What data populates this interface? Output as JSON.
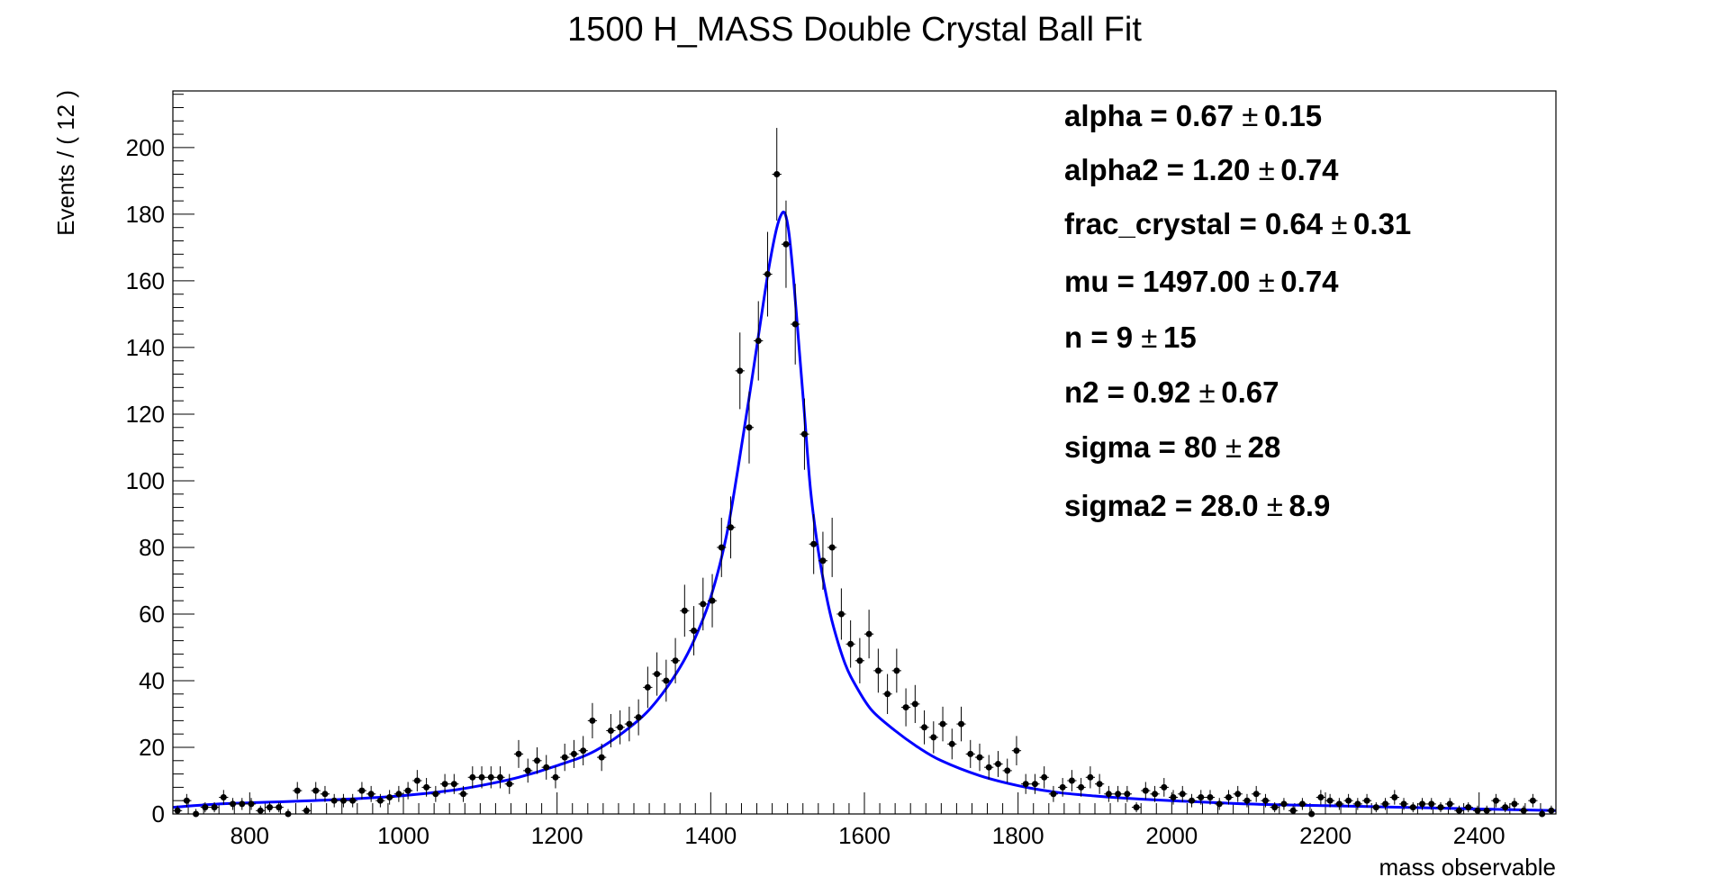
{
  "chart_data": {
    "type": "scatter",
    "title": "1500 H_MASS Double Crystal Ball Fit",
    "xlabel": "mass observable",
    "ylabel": "Events / ( 12 )",
    "xlim": [
      700,
      2500
    ],
    "ylim": [
      0,
      217
    ],
    "bin_width": 12,
    "grid": false,
    "x_ticks": [
      800,
      1000,
      1200,
      1400,
      1600,
      1800,
      2000,
      2200,
      2400
    ],
    "x_tick_labels": [
      "800",
      "1000",
      "1200",
      "1400",
      "1600",
      "1800",
      "2000",
      "2200",
      "2400"
    ],
    "y_ticks": [
      0,
      20,
      40,
      60,
      80,
      100,
      120,
      140,
      160,
      180,
      200
    ],
    "y_tick_labels": [
      "0",
      "20",
      "40",
      "60",
      "80",
      "100",
      "120",
      "140",
      "160",
      "180",
      "200"
    ],
    "series": [
      {
        "style": "data points with error bars",
        "color": "#000000",
        "x": [
          706,
          718,
          730,
          742,
          754,
          766,
          778,
          790,
          802,
          814,
          826,
          838,
          850,
          862,
          874,
          886,
          898,
          910,
          922,
          934,
          946,
          958,
          970,
          982,
          994,
          1006,
          1018,
          1030,
          1042,
          1054,
          1066,
          1078,
          1090,
          1102,
          1114,
          1126,
          1138,
          1150,
          1162,
          1174,
          1186,
          1198,
          1210,
          1222,
          1234,
          1246,
          1258,
          1270,
          1282,
          1294,
          1306,
          1318,
          1330,
          1342,
          1354,
          1366,
          1378,
          1390,
          1402,
          1414,
          1426,
          1438,
          1450,
          1462,
          1474,
          1486,
          1498,
          1510,
          1522,
          1534,
          1546,
          1558,
          1570,
          1582,
          1594,
          1606,
          1618,
          1630,
          1642,
          1654,
          1666,
          1678,
          1690,
          1702,
          1714,
          1726,
          1738,
          1750,
          1762,
          1774,
          1786,
          1798,
          1810,
          1822,
          1834,
          1846,
          1858,
          1870,
          1882,
          1894,
          1906,
          1918,
          1930,
          1942,
          1954,
          1966,
          1978,
          1990,
          2002,
          2014,
          2026,
          2038,
          2050,
          2062,
          2074,
          2086,
          2098,
          2110,
          2122,
          2134,
          2146,
          2158,
          2170,
          2182,
          2194,
          2206,
          2218,
          2230,
          2242,
          2254,
          2266,
          2278,
          2290,
          2302,
          2314,
          2326,
          2338,
          2350,
          2362,
          2374,
          2386,
          2398,
          2410,
          2422,
          2434,
          2446,
          2458,
          2470,
          2482,
          2494
        ],
        "y": [
          1,
          4,
          0,
          2,
          2,
          5,
          3,
          3,
          3,
          1,
          2,
          2,
          0,
          7,
          1,
          7,
          6,
          4,
          4,
          4,
          7,
          6,
          4,
          5,
          6,
          7,
          10,
          8,
          6,
          9,
          9,
          6,
          11,
          11,
          11,
          11,
          9,
          18,
          13,
          16,
          14,
          11,
          17,
          18,
          19,
          28,
          17,
          25,
          26,
          27,
          29,
          38,
          42,
          40,
          46,
          61,
          55,
          63,
          64,
          80,
          86,
          133,
          116,
          142,
          162,
          192,
          171,
          147,
          114,
          81,
          76,
          80,
          60,
          51,
          46,
          54,
          43,
          36,
          43,
          32,
          33,
          26,
          23,
          27,
          21,
          27,
          18,
          17,
          14,
          15,
          13,
          19,
          9,
          9,
          11,
          6,
          8,
          10,
          8,
          11,
          9,
          6,
          6,
          6,
          2,
          7,
          6,
          8,
          5,
          6,
          4,
          5,
          5,
          3,
          5,
          6,
          4,
          6,
          4,
          2,
          3,
          1,
          3,
          0,
          5,
          4,
          3,
          4,
          3,
          4,
          2,
          3,
          5,
          3,
          2,
          3,
          3,
          2,
          3,
          1,
          2,
          1,
          1,
          4,
          2,
          3,
          1,
          4,
          0,
          1
        ],
        "y_err": [
          1.5,
          2,
          1.5,
          1.5,
          1.5,
          2.2,
          1.8,
          1.8,
          1.8,
          1.5,
          1.5,
          1.5,
          1.5,
          2.6,
          1.5,
          2.6,
          2.4,
          2,
          2,
          2,
          2.6,
          2.4,
          2,
          2.2,
          2.4,
          2.6,
          3.2,
          2.8,
          2.4,
          3,
          3,
          2.4,
          3.3,
          3.3,
          3.3,
          3.3,
          3,
          4.2,
          3.6,
          4,
          3.7,
          3.3,
          4.1,
          4.2,
          4.4,
          5.3,
          4.1,
          5,
          5.1,
          5.2,
          5.4,
          6.2,
          6.5,
          6.3,
          6.8,
          7.8,
          7.4,
          7.9,
          8,
          8.9,
          9.3,
          11.5,
          10.8,
          11.9,
          12.7,
          13.9,
          13.1,
          12.1,
          10.7,
          9,
          8.7,
          8.9,
          7.7,
          7.1,
          6.8,
          7.3,
          6.6,
          6,
          6.6,
          5.7,
          5.7,
          5.1,
          4.8,
          5.2,
          4.6,
          5.2,
          4.2,
          4.1,
          3.7,
          3.9,
          3.6,
          4.4,
          3,
          3,
          3.3,
          2.4,
          2.8,
          3.2,
          2.8,
          3.3,
          3,
          2.4,
          2.4,
          2.4,
          1.5,
          2.6,
          2.4,
          2.8,
          2.2,
          2.4,
          2,
          2.2,
          2.2,
          1.8,
          2.2,
          2.4,
          2,
          2.4,
          2,
          1.5,
          1.8,
          1.5,
          1.8,
          1.5,
          2.2,
          2,
          1.8,
          2,
          1.8,
          2,
          1.5,
          1.8,
          2.2,
          1.8,
          1.5,
          1.8,
          1.8,
          1.5,
          1.8,
          1.5,
          1.5,
          1.5,
          1.5,
          2,
          1.5,
          1.8,
          1.5,
          2,
          1.5,
          1.5
        ]
      },
      {
        "style": "fit curve",
        "color": "#0000ff",
        "x": [
          700,
          760,
          820,
          880,
          940,
          1000,
          1060,
          1100,
          1150,
          1200,
          1250,
          1300,
          1330,
          1360,
          1380,
          1400,
          1420,
          1435,
          1450,
          1465,
          1475,
          1485,
          1492,
          1497,
          1502,
          1508,
          1515,
          1522,
          1530,
          1540,
          1550,
          1560,
          1575,
          1590,
          1610,
          1640,
          1670,
          1700,
          1750,
          1800,
          1850,
          1900,
          1950,
          2000,
          2100,
          2200,
          2300,
          2400,
          2500
        ],
        "y": [
          2,
          3,
          3.5,
          4,
          4.6,
          5.5,
          7,
          8.5,
          11,
          14.5,
          19,
          27,
          34,
          44,
          53,
          65,
          83,
          103,
          125,
          148,
          163,
          175,
          180,
          180,
          174,
          160,
          140,
          120,
          97,
          79,
          66,
          56,
          45,
          38,
          31,
          25,
          20,
          16,
          11.5,
          8.5,
          6.5,
          5.4,
          4.6,
          4,
          3,
          2.5,
          2,
          1.5,
          1
        ]
      }
    ],
    "parameters": [
      {
        "name": "alpha =  0.67",
        "error": "0.15"
      },
      {
        "name": "alpha2 =  1.20",
        "error": "0.74"
      },
      {
        "name": "frac_crystal =  0.64",
        "error": "0.31"
      },
      {
        "name": "mu =  1497.00",
        "error": "0.74"
      },
      {
        "name": "n =  9",
        "error": "15"
      },
      {
        "name": "n2 =  0.92",
        "error": "0.67"
      },
      {
        "name": "sigma =  80",
        "error": "28"
      },
      {
        "name": "sigma2 =  28.0",
        "error": "8.9"
      }
    ],
    "pm_symbol": "±"
  }
}
